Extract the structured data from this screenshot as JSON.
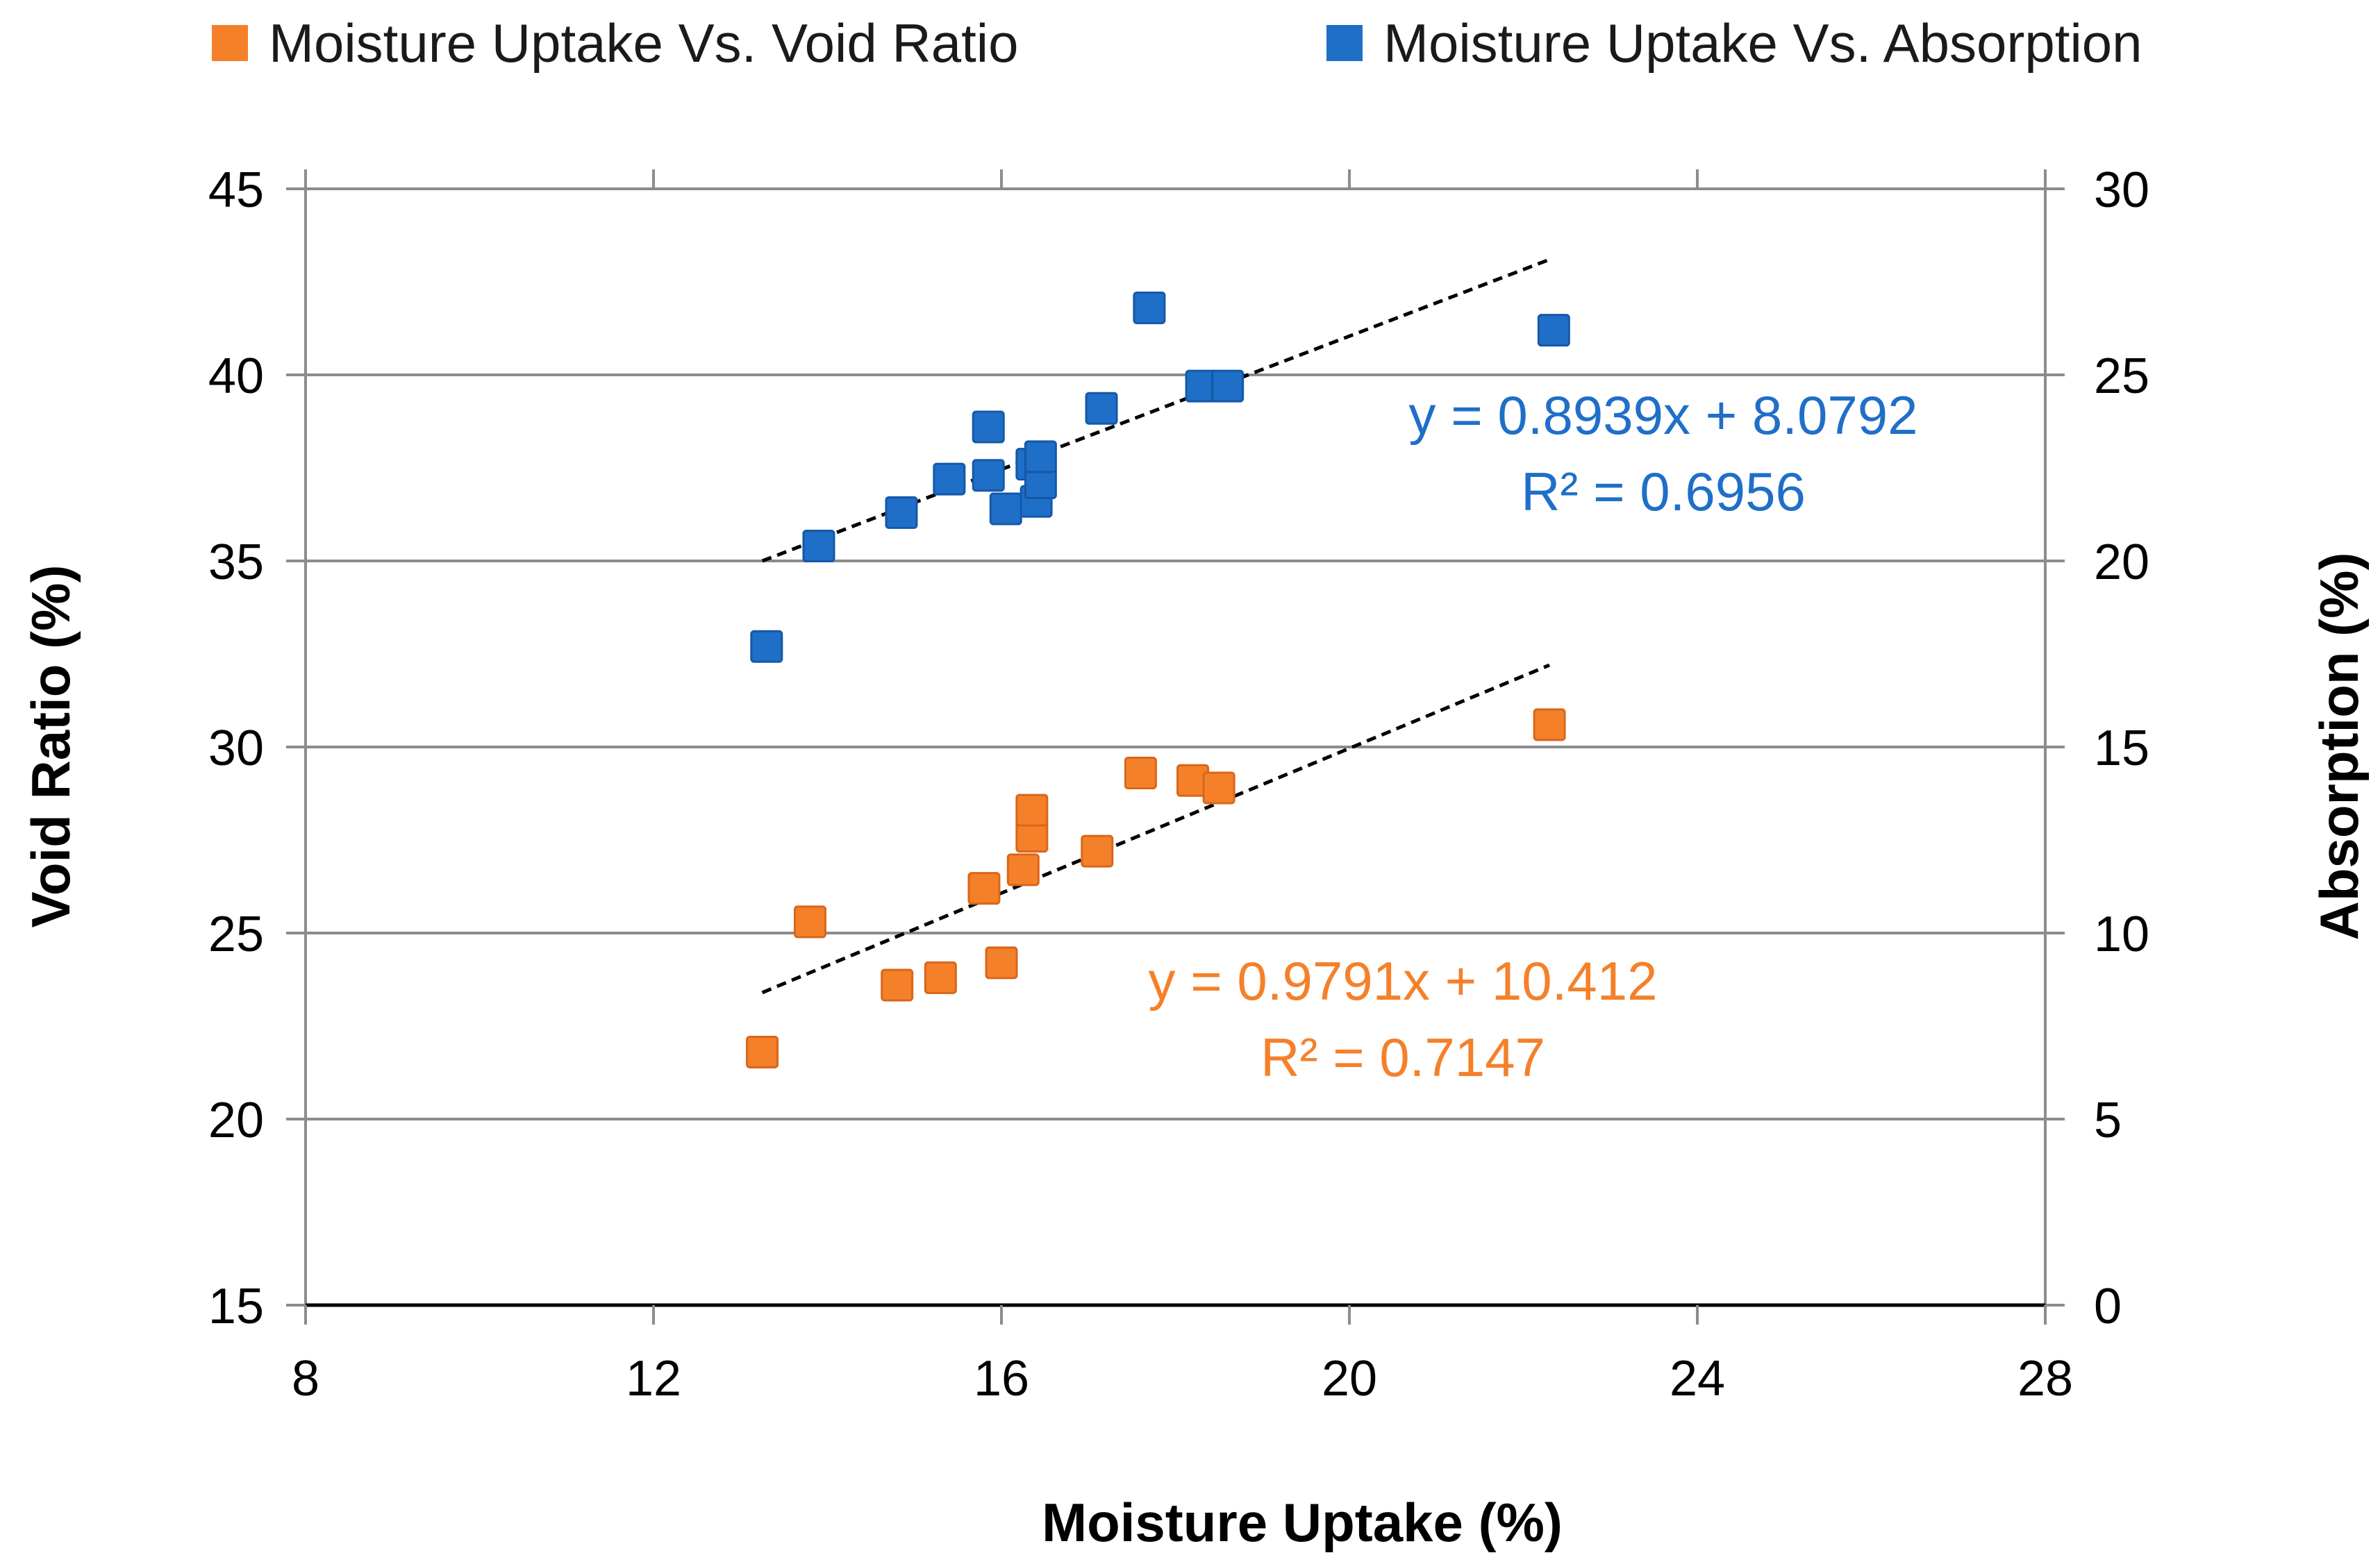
{
  "chart_data": {
    "type": "scatter",
    "xlabel": "Moisture Uptake (%)",
    "ylabel": "Void Ratio (%)",
    "y2label": "Absorption (%)",
    "xlim": [
      8,
      28
    ],
    "ylim": [
      15,
      45
    ],
    "y2lim": [
      0,
      30
    ],
    "xticks": [
      8,
      12,
      16,
      20,
      24,
      28
    ],
    "yticks": [
      15,
      20,
      25,
      30,
      35,
      40,
      45
    ],
    "y2ticks": [
      0,
      5,
      10,
      15,
      20,
      25,
      30
    ],
    "grid": "horizontal",
    "legend_position": "top",
    "series": [
      {
        "name": "Moisture Uptake Vs. Void Ratio",
        "axis": "left",
        "color": "#F5802A",
        "x": [
          13.25,
          13.8,
          14.8,
          15.3,
          15.8,
          16.0,
          16.25,
          16.35,
          16.35,
          17.1,
          17.6,
          18.2,
          18.5,
          22.3
        ],
        "y": [
          21.8,
          25.3,
          23.6,
          23.8,
          26.2,
          24.2,
          26.7,
          27.6,
          28.3,
          27.2,
          29.3,
          29.1,
          28.9,
          30.6
        ],
        "trendline": {
          "x": [
            13.25,
            22.3
          ],
          "y": [
            23.4,
            32.2
          ]
        },
        "equation": "y = 0.9791x + 10.412",
        "r2": "R² = 0.7147"
      },
      {
        "name": "Moisture Uptake Vs. Absorption",
        "axis": "right",
        "color": "#1F6FC8",
        "x": [
          13.3,
          13.9,
          14.85,
          15.4,
          15.85,
          15.85,
          16.05,
          16.35,
          16.4,
          16.45,
          16.45,
          17.15,
          17.7,
          18.3,
          18.6,
          22.35
        ],
        "y": [
          17.7,
          20.4,
          21.3,
          22.2,
          22.3,
          23.6,
          21.4,
          22.6,
          21.6,
          22.1,
          22.8,
          24.1,
          26.8,
          24.7,
          24.7,
          26.2
        ],
        "trendline": {
          "x": [
            13.25,
            22.3
          ],
          "y": [
            20.0,
            28.1
          ]
        },
        "equation": "y = 0.8939x + 8.0792",
        "r2": "R² = 0.6956"
      }
    ]
  }
}
